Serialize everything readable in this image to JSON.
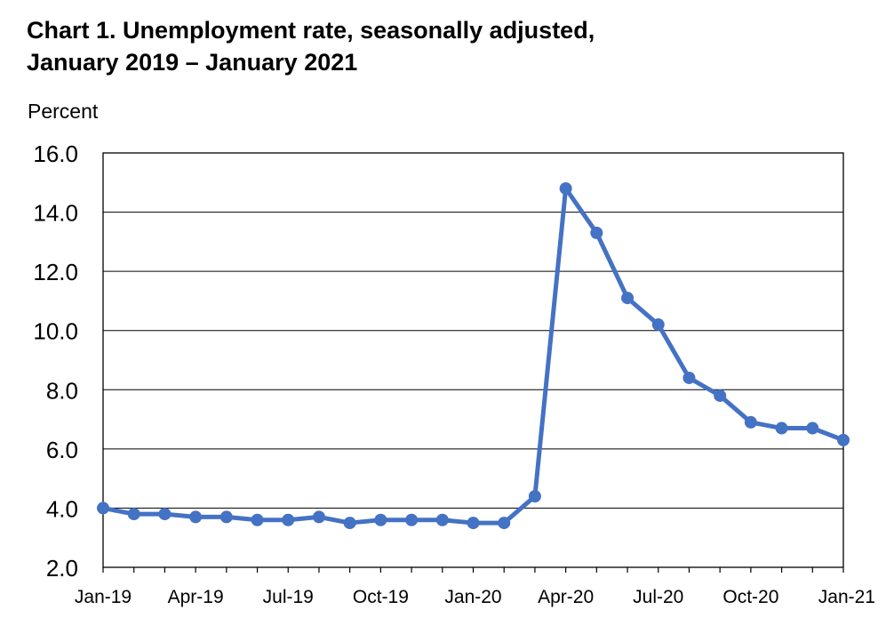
{
  "chart_data": {
    "type": "line",
    "title_line1": "Chart 1. Unemployment rate, seasonally adjusted,",
    "title_line2": "January 2019 – January 2021",
    "ylabel": "Percent",
    "xlabel": "",
    "ylim": [
      2.0,
      16.0
    ],
    "yticks": [
      "2.0",
      "4.0",
      "6.0",
      "8.0",
      "10.0",
      "12.0",
      "14.0",
      "16.0"
    ],
    "xtick_labels": [
      "Jan-19",
      "Apr-19",
      "Jul-19",
      "Oct-19",
      "Jan-20",
      "Apr-20",
      "Jul-20",
      "Oct-20",
      "Jan-21"
    ],
    "x": [
      "Jan-19",
      "Feb-19",
      "Mar-19",
      "Apr-19",
      "May-19",
      "Jun-19",
      "Jul-19",
      "Aug-19",
      "Sep-19",
      "Oct-19",
      "Nov-19",
      "Dec-19",
      "Jan-20",
      "Feb-20",
      "Mar-20",
      "Apr-20",
      "May-20",
      "Jun-20",
      "Jul-20",
      "Aug-20",
      "Sep-20",
      "Oct-20",
      "Nov-20",
      "Dec-20",
      "Jan-21"
    ],
    "series": [
      {
        "values": [
          4.0,
          3.8,
          3.8,
          3.7,
          3.7,
          3.6,
          3.6,
          3.7,
          3.5,
          3.6,
          3.6,
          3.6,
          3.5,
          3.5,
          4.4,
          14.8,
          13.3,
          11.1,
          10.2,
          8.4,
          7.8,
          6.9,
          6.7,
          6.7,
          6.3
        ],
        "color": "#4472C4"
      }
    ],
    "grid": true,
    "legend": "none"
  }
}
